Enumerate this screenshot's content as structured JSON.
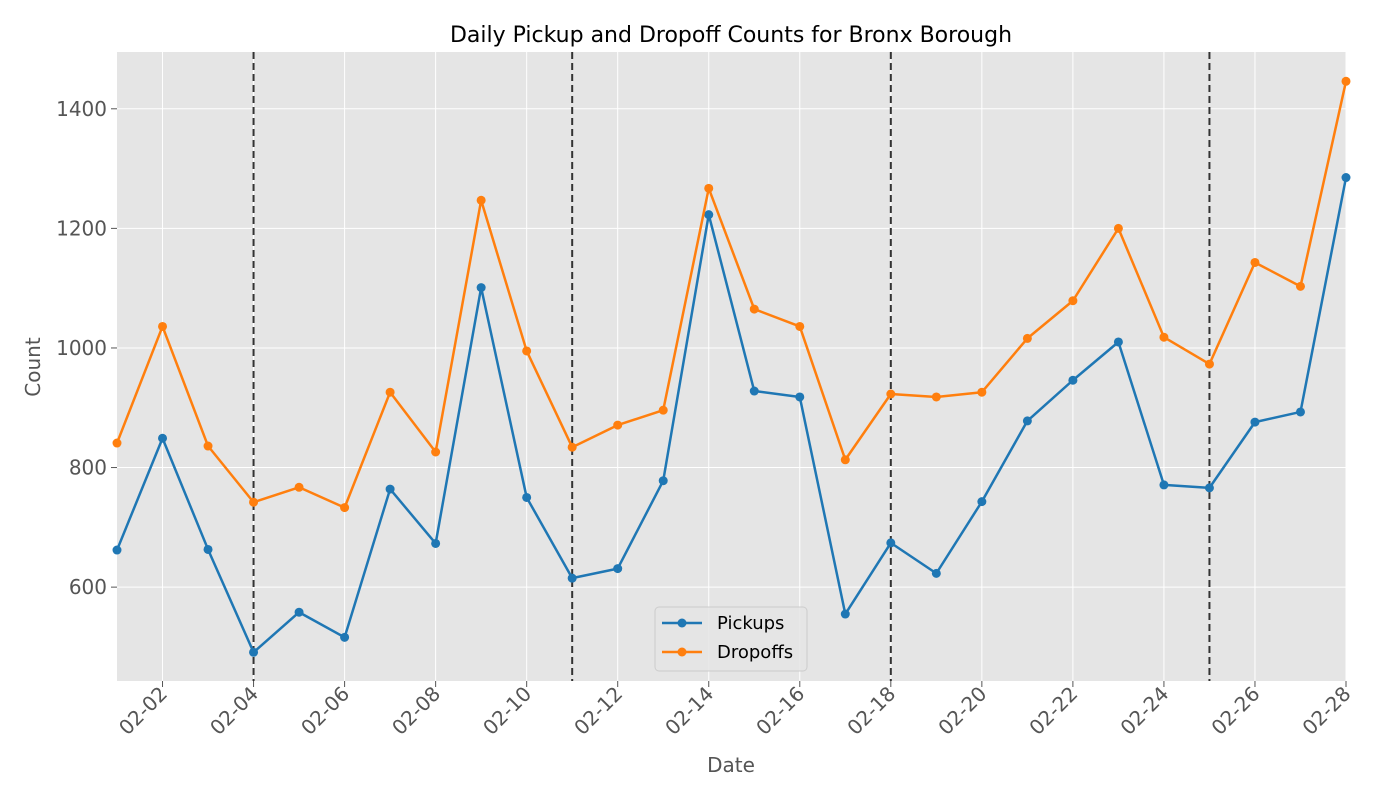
{
  "chart_data": {
    "type": "line",
    "title": "Daily Pickup and Dropoff Counts for Bronx Borough",
    "xlabel": "Date",
    "ylabel": "Count",
    "x": [
      "02-01",
      "02-02",
      "02-03",
      "02-04",
      "02-05",
      "02-06",
      "02-07",
      "02-08",
      "02-09",
      "02-10",
      "02-11",
      "02-12",
      "02-13",
      "02-14",
      "02-15",
      "02-16",
      "02-17",
      "02-18",
      "02-19",
      "02-20",
      "02-21",
      "02-22",
      "02-23",
      "02-24",
      "02-25",
      "02-26",
      "02-27",
      "02-28"
    ],
    "x_tick_labels": [
      "02-02",
      "02-04",
      "02-06",
      "02-08",
      "02-10",
      "02-12",
      "02-14",
      "02-16",
      "02-18",
      "02-20",
      "02-22",
      "02-24",
      "02-26",
      "02-28"
    ],
    "y_ticks": [
      600,
      800,
      1000,
      1200,
      1400
    ],
    "ylim": [
      443,
      1495
    ],
    "series": [
      {
        "name": "Pickups",
        "color": "#1f77b4",
        "values": [
          662,
          849,
          663,
          491,
          558,
          516,
          764,
          673,
          1101,
          750,
          615,
          631,
          778,
          1223,
          928,
          918,
          555,
          674,
          623,
          743,
          878,
          946,
          1010,
          771,
          766,
          876,
          893,
          1285
        ]
      },
      {
        "name": "Dropoffs",
        "color": "#ff7f0e",
        "values": [
          841,
          1036,
          836,
          742,
          767,
          733,
          926,
          826,
          1247,
          995,
          834,
          871,
          896,
          1267,
          1065,
          1036,
          813,
          923,
          918,
          926,
          1016,
          1079,
          1200,
          1018,
          973,
          1143,
          1103,
          1446
        ]
      }
    ],
    "vlines": [
      "02-04",
      "02-11",
      "02-18",
      "02-25"
    ],
    "vline_style": "dashed",
    "grid": true,
    "background": "#e5e5e5",
    "legend_position": "bottom-center"
  }
}
